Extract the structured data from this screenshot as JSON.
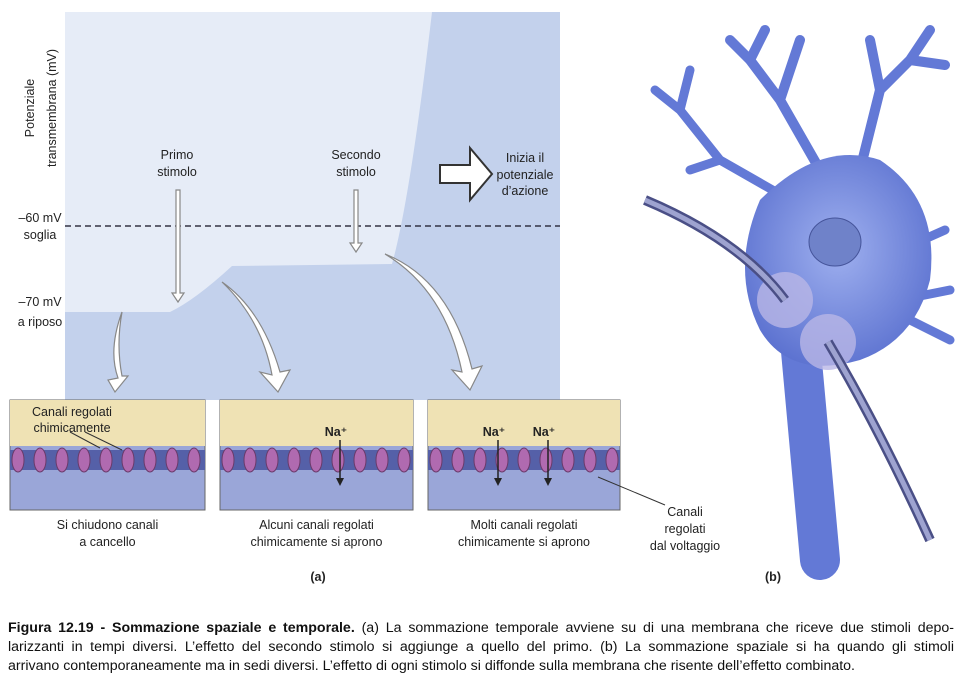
{
  "graph": {
    "y_axis_label": [
      "Potenziale",
      "transmembrana (mV)"
    ],
    "threshold_label": [
      "–60 mV",
      "soglia"
    ],
    "rest_label": [
      "–70 mV",
      "a riposo"
    ],
    "first_stimulus": [
      "Primo",
      "stimolo"
    ],
    "second_stimulus": [
      "Secondo",
      "stimolo"
    ],
    "action_potential": [
      "Inizia il",
      "potenziale",
      "d’azione"
    ]
  },
  "membranes": {
    "chemical_channels_label": [
      "Canali regolati",
      "chimicamente"
    ],
    "ion_label": "Na⁺",
    "captions": [
      [
        "Si chiudono canali",
        "a cancello"
      ],
      [
        "Alcuni canali regolati",
        "chimicamente si aprono"
      ],
      [
        "Molti canali regolati",
        "chimicamente si aprono"
      ]
    ],
    "voltage_channels_label": [
      "Canali",
      "regolati",
      "dal voltaggio"
    ]
  },
  "panel_labels": {
    "a": "(a)",
    "b": "(b)"
  },
  "caption": {
    "label": "Figura 12.19 - Sommazione spaziale e temporale.",
    "lines": [
      " (a) La sommazione temporale avviene su di una membrana che riceve due stimoli depo-",
      "larizzanti in tempi diversi. L’effetto del secondo stimolo si aggiunge a quello del primo. (b) La sommazione spaziale si ha quando gli stimoli",
      "arrivano contemporaneamente ma in sedi diversi. L’effetto di ogni stimolo si diffonde sulla membrana che risente dell’effetto combinato."
    ]
  }
}
